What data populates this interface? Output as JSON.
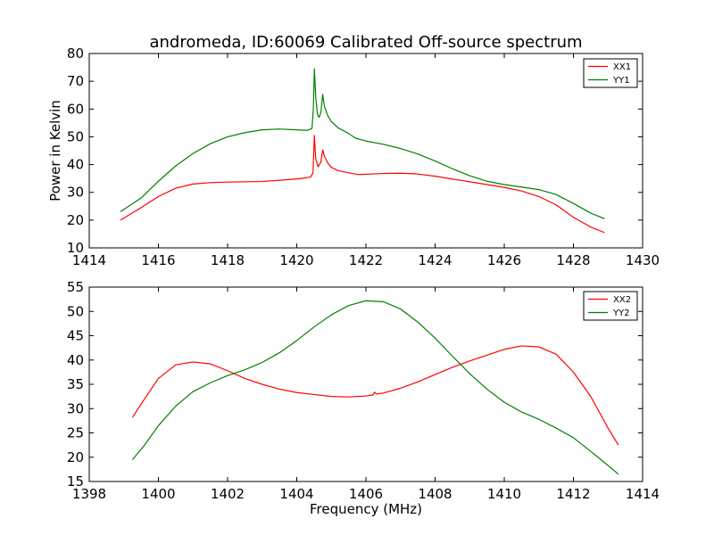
{
  "title": "andromeda, ID:60069 Calibrated Off-source spectrum",
  "chart_data": [
    {
      "type": "line",
      "title": "andromeda, ID:60069 Calibrated Off-source spectrum",
      "xlabel": "",
      "ylabel": "Power in Kelvin",
      "xlim": [
        1414,
        1430
      ],
      "ylim": [
        10,
        80
      ],
      "xticks": [
        1414,
        1416,
        1418,
        1420,
        1422,
        1424,
        1426,
        1428,
        1430
      ],
      "yticks": [
        10,
        20,
        30,
        40,
        50,
        60,
        70,
        80
      ],
      "grid": false,
      "legend": "top-right",
      "series": [
        {
          "name": "XX1",
          "color": "#ff0000",
          "points": [
            [
              1414.9,
              20
            ],
            [
              1415.5,
              24.5
            ],
            [
              1416,
              28.5
            ],
            [
              1416.5,
              31.5
            ],
            [
              1417,
              33
            ],
            [
              1417.5,
              33.5
            ],
            [
              1418,
              33.7
            ],
            [
              1419,
              33.9
            ],
            [
              1420,
              34.8
            ],
            [
              1420.4,
              35.5
            ],
            [
              1420.47,
              37
            ],
            [
              1420.51,
              50.5
            ],
            [
              1420.55,
              42
            ],
            [
              1420.62,
              39.2
            ],
            [
              1420.7,
              41
            ],
            [
              1420.75,
              45.3
            ],
            [
              1420.8,
              43
            ],
            [
              1420.9,
              40.5
            ],
            [
              1421,
              39
            ],
            [
              1421.2,
              37.8
            ],
            [
              1421.6,
              36.8
            ],
            [
              1421.8,
              36.4
            ],
            [
              1422.5,
              36.8
            ],
            [
              1423,
              36.9
            ],
            [
              1423.5,
              36.6
            ],
            [
              1424,
              35.8
            ],
            [
              1425,
              33.8
            ],
            [
              1426,
              31.8
            ],
            [
              1426.5,
              30.5
            ],
            [
              1427,
              28.5
            ],
            [
              1427.5,
              25.5
            ],
            [
              1428,
              21
            ],
            [
              1428.5,
              17.5
            ],
            [
              1428.9,
              15.5
            ]
          ]
        },
        {
          "name": "YY1",
          "color": "#008000",
          "points": [
            [
              1414.9,
              23
            ],
            [
              1415.5,
              28
            ],
            [
              1416,
              34
            ],
            [
              1416.5,
              39.5
            ],
            [
              1417,
              44
            ],
            [
              1417.5,
              47.5
            ],
            [
              1418,
              50
            ],
            [
              1418.5,
              51.5
            ],
            [
              1419,
              52.5
            ],
            [
              1419.5,
              52.8
            ],
            [
              1420,
              52.5
            ],
            [
              1420.3,
              52.3
            ],
            [
              1420.44,
              53
            ],
            [
              1420.48,
              60
            ],
            [
              1420.51,
              74.5
            ],
            [
              1420.55,
              64
            ],
            [
              1420.6,
              58
            ],
            [
              1420.65,
              57
            ],
            [
              1420.7,
              59
            ],
            [
              1420.75,
              65.3
            ],
            [
              1420.8,
              61
            ],
            [
              1420.9,
              57.5
            ],
            [
              1421,
              55.5
            ],
            [
              1421.2,
              53.2
            ],
            [
              1421.5,
              51.2
            ],
            [
              1421.7,
              49.5
            ],
            [
              1422,
              48.5
            ],
            [
              1422.5,
              47.3
            ],
            [
              1423,
              45.8
            ],
            [
              1423.5,
              43.8
            ],
            [
              1424,
              41.3
            ],
            [
              1424.5,
              38.5
            ],
            [
              1425,
              36
            ],
            [
              1425.5,
              34
            ],
            [
              1426,
              32.8
            ],
            [
              1427,
              31
            ],
            [
              1427.5,
              29.2
            ],
            [
              1428,
              26
            ],
            [
              1428.5,
              22.5
            ],
            [
              1428.9,
              20.5
            ]
          ]
        }
      ]
    },
    {
      "type": "line",
      "title": "",
      "xlabel": "Frequency (MHz)",
      "ylabel": "",
      "xlim": [
        1398,
        1414
      ],
      "ylim": [
        15,
        55
      ],
      "xticks": [
        1398,
        1400,
        1402,
        1404,
        1406,
        1408,
        1410,
        1412,
        1414
      ],
      "yticks": [
        15,
        20,
        25,
        30,
        35,
        40,
        45,
        50,
        55
      ],
      "grid": false,
      "legend": "top-right",
      "series": [
        {
          "name": "XX2",
          "color": "#ff0000",
          "points": [
            [
              1399.25,
              28.2
            ],
            [
              1399.6,
              32
            ],
            [
              1400,
              36.2
            ],
            [
              1400.5,
              39
            ],
            [
              1401,
              39.6
            ],
            [
              1401.5,
              39.2
            ],
            [
              1402,
              37.8
            ],
            [
              1402.5,
              36.2
            ],
            [
              1403,
              35
            ],
            [
              1403.5,
              34
            ],
            [
              1404,
              33.3
            ],
            [
              1404.5,
              32.9
            ],
            [
              1405,
              32.5
            ],
            [
              1405.5,
              32.4
            ],
            [
              1406,
              32.6
            ],
            [
              1406.2,
              32.8
            ],
            [
              1406.25,
              33.4
            ],
            [
              1406.3,
              33
            ],
            [
              1406.5,
              33.2
            ],
            [
              1407,
              34.2
            ],
            [
              1407.5,
              35.5
            ],
            [
              1408,
              37
            ],
            [
              1408.5,
              38.5
            ],
            [
              1409,
              39.8
            ],
            [
              1409.5,
              41
            ],
            [
              1410,
              42.2
            ],
            [
              1410.5,
              42.9
            ],
            [
              1411,
              42.7
            ],
            [
              1411.5,
              41.2
            ],
            [
              1412,
              37.5
            ],
            [
              1412.5,
              32.5
            ],
            [
              1413,
              26
            ],
            [
              1413.3,
              22.5
            ]
          ]
        },
        {
          "name": "YY2",
          "color": "#008000",
          "points": [
            [
              1399.25,
              19.5
            ],
            [
              1399.6,
              22.5
            ],
            [
              1400,
              26.5
            ],
            [
              1400.5,
              30.5
            ],
            [
              1401,
              33.5
            ],
            [
              1401.5,
              35.3
            ],
            [
              1402,
              36.8
            ],
            [
              1402.5,
              38
            ],
            [
              1403,
              39.5
            ],
            [
              1403.5,
              41.5
            ],
            [
              1404,
              44
            ],
            [
              1404.5,
              46.8
            ],
            [
              1405,
              49.3
            ],
            [
              1405.5,
              51.2
            ],
            [
              1406,
              52.2
            ],
            [
              1406.5,
              52
            ],
            [
              1407,
              50.5
            ],
            [
              1407.5,
              47.8
            ],
            [
              1408,
              44.5
            ],
            [
              1408.5,
              40.8
            ],
            [
              1409,
              37.2
            ],
            [
              1409.5,
              34
            ],
            [
              1410,
              31.3
            ],
            [
              1410.5,
              29.3
            ],
            [
              1411,
              27.8
            ],
            [
              1411.5,
              26
            ],
            [
              1412,
              24
            ],
            [
              1412.5,
              21.2
            ],
            [
              1413,
              18.3
            ],
            [
              1413.3,
              16.5
            ]
          ]
        }
      ]
    }
  ]
}
